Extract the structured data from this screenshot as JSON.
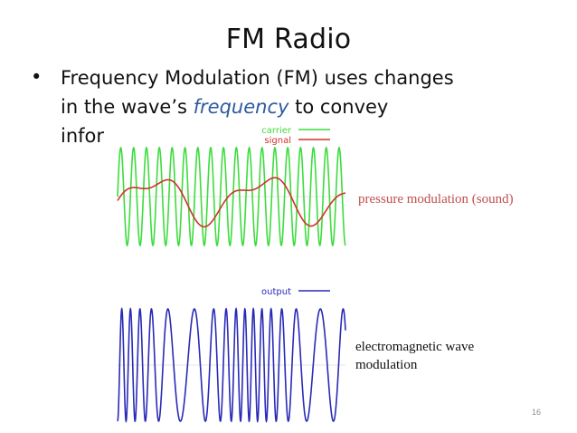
{
  "slide": {
    "title": "FM Radio",
    "bullet_symbol": "•",
    "line1": "Frequency Modulation (FM) uses changes",
    "line2_before": "in the wave’s ",
    "line2_emphasis": "frequency",
    "line2_after": " to convey",
    "line3": "infor",
    "page_number": "16"
  },
  "figures": {
    "top_legend": {
      "carrier": "carrier",
      "signal": "signal"
    },
    "bottom_legend": {
      "output": "output"
    },
    "pressure_annotation": "pressure modulation (sound)",
    "em_annotation": "electromagnetic wave modulation"
  },
  "colors": {
    "carrier": "#3ddc3d",
    "signal": "#d0312d",
    "output": "#2a2ab8",
    "emphasis": "#2c5b9e",
    "pressure_text": "#c0504d"
  }
}
